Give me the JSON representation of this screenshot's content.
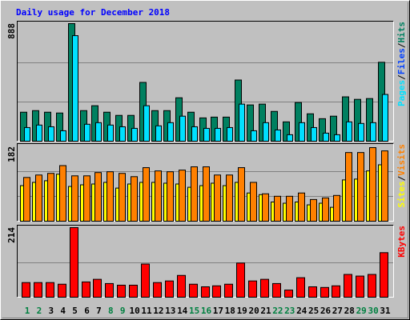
{
  "chart_data": [
    {
      "type": "bar",
      "title": "Daily usage for December 2018",
      "ylim": [
        0,
        888
      ],
      "yticks": [
        888
      ],
      "legend_separator": "/",
      "series": [
        {
          "name": "Pages",
          "color": "#00e0ff",
          "values": [
            103,
            122,
            109,
            79,
            797,
            128,
            140,
            122,
            109,
            97,
            268,
            116,
            140,
            189,
            109,
            97,
            97,
            103,
            280,
            79,
            140,
            85,
            49,
            140,
            103,
            61,
            49,
            146,
            134,
            140,
            353
          ]
        },
        {
          "name": "Files",
          "color": "#0040ff",
          "values": [
            null,
            null,
            null,
            null,
            null,
            null,
            null,
            null,
            null,
            null,
            null,
            null,
            null,
            null,
            null,
            null,
            null,
            null,
            null,
            null,
            null,
            null,
            null,
            null,
            null,
            null,
            null,
            null,
            null,
            null,
            null
          ]
        },
        {
          "name": "Hits",
          "color": "#008060",
          "values": [
            219,
            231,
            219,
            213,
            888,
            231,
            268,
            219,
            195,
            195,
            444,
            231,
            231,
            328,
            219,
            176,
            182,
            182,
            462,
            274,
            280,
            225,
            146,
            292,
            207,
            170,
            189,
            335,
            316,
            322,
            596
          ]
        }
      ]
    },
    {
      "type": "bar",
      "ylim": [
        0,
        182
      ],
      "yticks": [
        182
      ],
      "legend_separator": "/",
      "series": [
        {
          "name": "Sites",
          "color": "#ffff00",
          "values": [
            87,
            95,
            99,
            115,
            85,
            89,
            91,
            95,
            81,
            91,
            95,
            95,
            93,
            91,
            83,
            87,
            93,
            87,
            95,
            69,
            65,
            47,
            44,
            47,
            40,
            44,
            34,
            101,
            103,
            123,
            138
          ]
        },
        {
          "name": "Visits",
          "color": "#ff8000",
          "values": [
            107,
            113,
            117,
            136,
            111,
            111,
            119,
            121,
            117,
            109,
            131,
            123,
            121,
            125,
            133,
            133,
            113,
            113,
            131,
            95,
            67,
            61,
            61,
            69,
            53,
            57,
            63,
            168,
            168,
            180,
            172
          ]
        }
      ]
    },
    {
      "type": "bar",
      "ylim": [
        0,
        214
      ],
      "yticks": [
        214
      ],
      "categories": [
        "1",
        "2",
        "3",
        "4",
        "5",
        "6",
        "7",
        "8",
        "9",
        "10",
        "11",
        "12",
        "13",
        "14",
        "15",
        "16",
        "17",
        "18",
        "19",
        "20",
        "21",
        "22",
        "23",
        "24",
        "25",
        "26",
        "27",
        "28",
        "29",
        "30",
        "31"
      ],
      "category_colors": [
        "#008040",
        "#008040",
        "#000000",
        "#000000",
        "#000000",
        "#000000",
        "#000000",
        "#008040",
        "#008040",
        "#000000",
        "#000000",
        "#000000",
        "#000000",
        "#000000",
        "#008040",
        "#008040",
        "#000000",
        "#000000",
        "#000000",
        "#000000",
        "#000000",
        "#008040",
        "#008040",
        "#000000",
        "#000000",
        "#000000",
        "#000000",
        "#000000",
        "#008040",
        "#008040",
        "#000000"
      ],
      "series": [
        {
          "name": "KBytes",
          "color": "#ff0000",
          "values": [
            45,
            45,
            45,
            40,
            214,
            47,
            55,
            42,
            37,
            37,
            102,
            45,
            50,
            67,
            40,
            32,
            35,
            40,
            105,
            50,
            55,
            42,
            22,
            60,
            32,
            30,
            35,
            70,
            65,
            70,
            137
          ]
        }
      ]
    }
  ]
}
